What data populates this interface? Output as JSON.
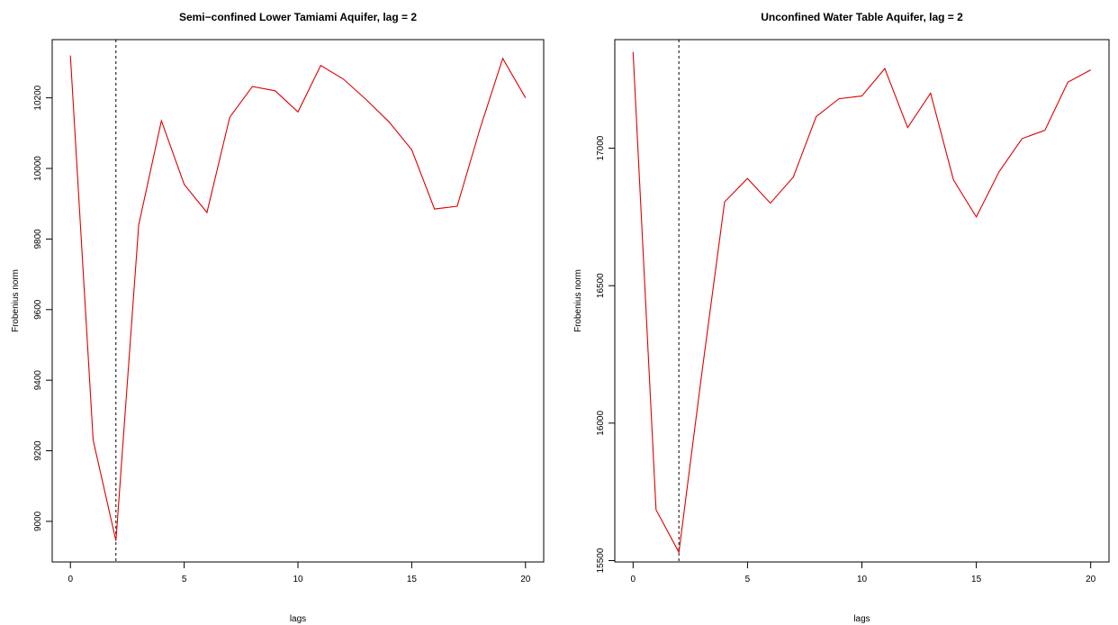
{
  "chart_data": [
    {
      "type": "line",
      "title": "Semi−confined Lower Tamiami Aquifer, lag = 2",
      "xlabel": "lags",
      "ylabel": "Frobenius norm",
      "xlim": [
        -0.8,
        20.8
      ],
      "ylim": [
        8885,
        10365
      ],
      "xticks": [
        0,
        5,
        10,
        15,
        20
      ],
      "yticks": [
        9000,
        9200,
        9400,
        9600,
        9800,
        10000,
        10200
      ],
      "grid": false,
      "vline_x": 2,
      "color": "#e00000",
      "x": [
        0,
        1,
        2,
        3,
        4,
        5,
        6,
        7,
        8,
        9,
        10,
        11,
        12,
        13,
        14,
        15,
        16,
        17,
        18,
        19,
        20
      ],
      "values": [
        10320,
        9230,
        8945,
        9840,
        10135,
        9955,
        9875,
        10145,
        10232,
        10220,
        10160,
        10292,
        10253,
        10195,
        10132,
        10053,
        9885,
        9893,
        10112,
        10312,
        10200
      ]
    },
    {
      "type": "line",
      "title": "Unconfined Water Table Aquifer, lag = 2",
      "xlabel": "lags",
      "ylabel": "Frobenius norm",
      "xlim": [
        -0.8,
        20.8
      ],
      "ylim": [
        15495,
        17395
      ],
      "xticks": [
        0,
        5,
        10,
        15,
        20
      ],
      "yticks": [
        15500,
        16000,
        16500,
        17000
      ],
      "grid": false,
      "vline_x": 2,
      "color": "#e00000",
      "x": [
        0,
        1,
        2,
        3,
        4,
        5,
        6,
        7,
        8,
        9,
        10,
        11,
        12,
        13,
        14,
        15,
        16,
        17,
        18,
        19,
        20
      ],
      "values": [
        17350,
        15685,
        15530,
        16180,
        16805,
        16890,
        16800,
        16895,
        17115,
        17180,
        17190,
        17290,
        17075,
        17200,
        16885,
        16750,
        16915,
        17035,
        17065,
        17240,
        17285
      ]
    }
  ]
}
